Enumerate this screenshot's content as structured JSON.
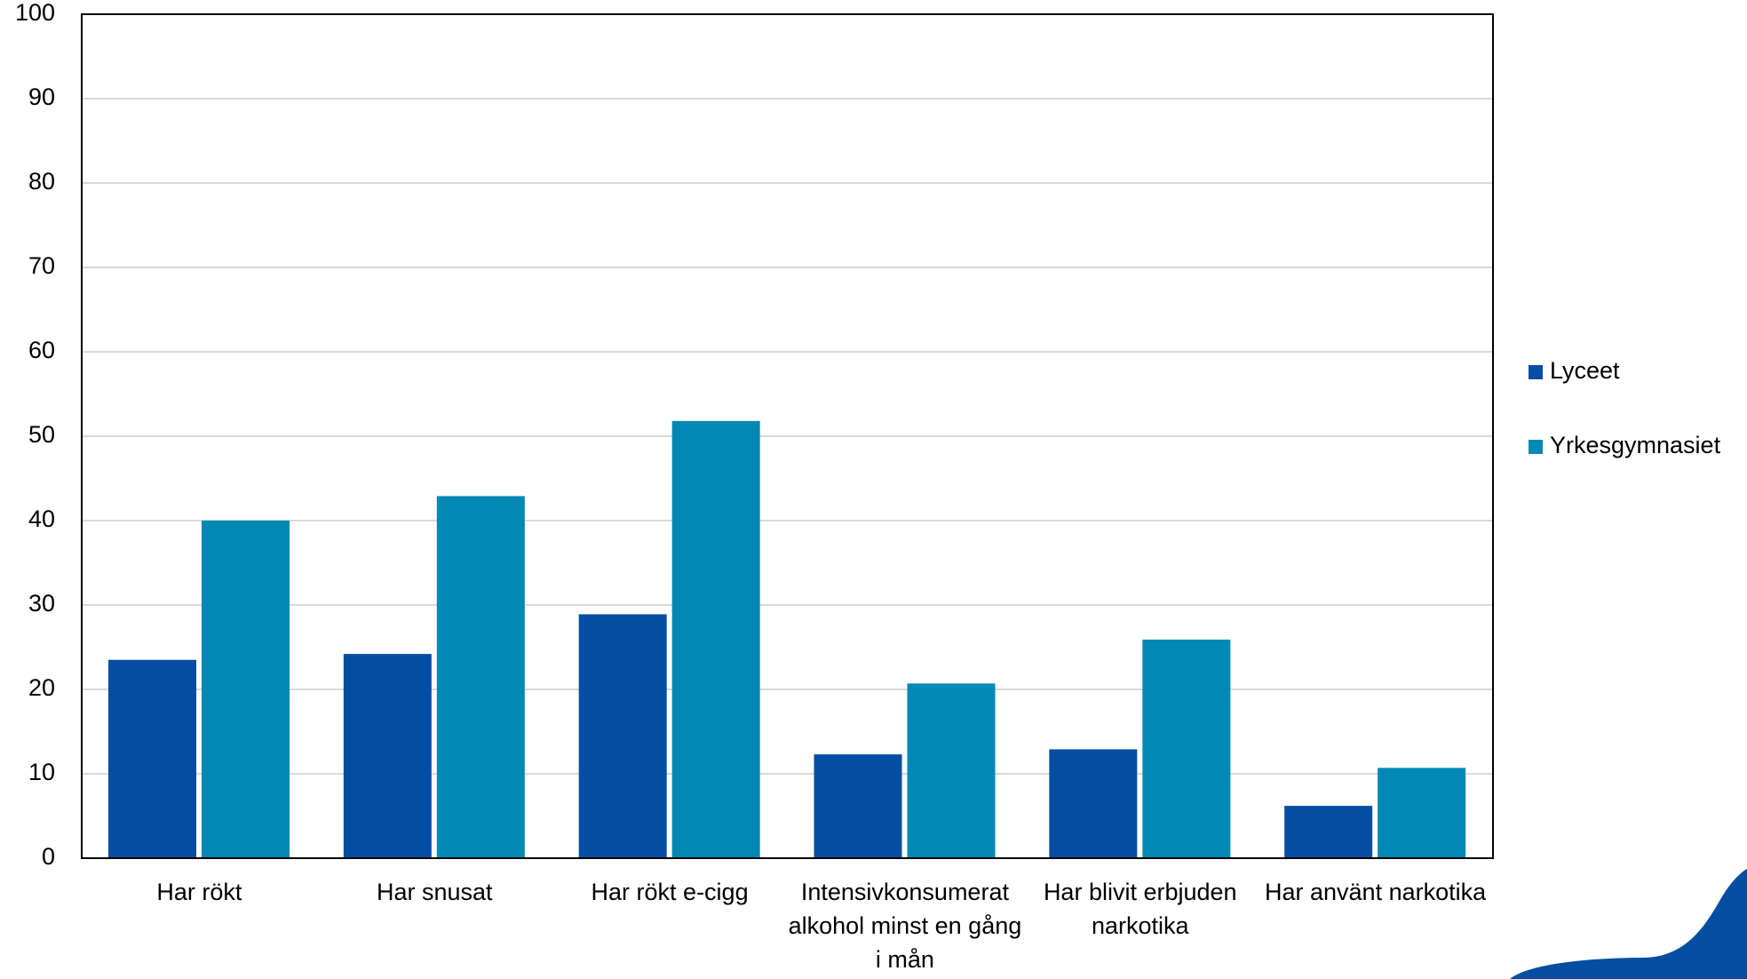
{
  "chart_data": {
    "type": "bar",
    "categories": [
      "Har rökt",
      "Har snusat",
      "Har rökt e-cigg",
      "Intensivkonsumerat alkohol minst en gång i mån",
      "Har blivit erbjuden narkotika",
      "Har använt narkotika"
    ],
    "series": [
      {
        "name": "Lyceet",
        "color": "#034ea2",
        "values": [
          23.5,
          24.2,
          28.9,
          12.3,
          12.9,
          6.2
        ]
      },
      {
        "name": "Yrkesgymnasiet",
        "color": "#0089b5",
        "values": [
          40,
          42.9,
          51.8,
          20.7,
          25.9,
          10.7
        ]
      }
    ],
    "ylim": [
      0,
      100
    ],
    "yticks": [
      0,
      10,
      20,
      30,
      40,
      50,
      60,
      70,
      80,
      90,
      100
    ],
    "grid": true,
    "legend": "right"
  }
}
